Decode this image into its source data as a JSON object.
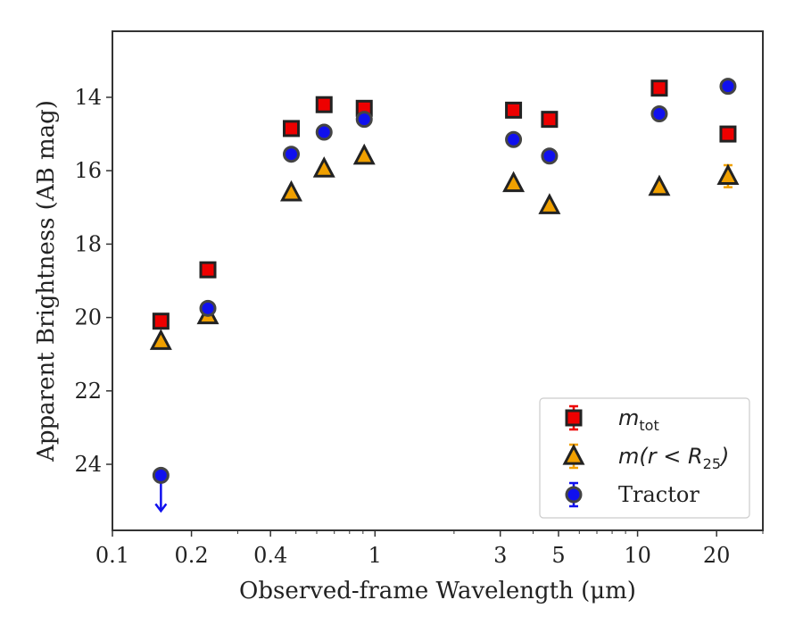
{
  "chart_data": {
    "type": "scatter",
    "title": "",
    "xlabel": "Observed-frame Wavelength (μm)",
    "ylabel": "Apparent Brightness (AB mag)",
    "xscale": "log",
    "xlim": [
      0.1,
      30
    ],
    "ylim": [
      25.8,
      12.2
    ],
    "y_inverted": true,
    "x_ticks": [
      0.1,
      0.2,
      0.4,
      1,
      3,
      5,
      10,
      20
    ],
    "x_tick_labels": [
      "0.1",
      "0.2",
      "0.4",
      "1",
      "3",
      "5",
      "10",
      "20"
    ],
    "y_ticks": [
      14,
      16,
      18,
      20,
      22,
      24
    ],
    "y_tick_labels": [
      "14",
      "16",
      "18",
      "20",
      "22",
      "24"
    ],
    "legend_position": "lower-right",
    "series": [
      {
        "name": "m_tot",
        "marker": "square",
        "color": "#ee0000",
        "edge": "#222222",
        "x": [
          0.153,
          0.231,
          0.48,
          0.64,
          0.91,
          3.37,
          4.62,
          12.1,
          22.1
        ],
        "y": [
          20.1,
          18.7,
          14.85,
          14.2,
          14.3,
          14.35,
          14.6,
          13.75,
          15.0
        ],
        "upper_limit": [
          false,
          false,
          false,
          false,
          false,
          false,
          false,
          false,
          false
        ],
        "err": [
          0.05,
          0.05,
          0.05,
          0.05,
          0.05,
          0.05,
          0.05,
          0.05,
          0.05
        ]
      },
      {
        "name": "m(r < R25)",
        "marker": "triangle",
        "color": "#f0a000",
        "edge": "#222222",
        "x": [
          0.153,
          0.231,
          0.48,
          0.64,
          0.91,
          3.37,
          4.62,
          12.1,
          22.1
        ],
        "y": [
          20.65,
          19.95,
          16.6,
          15.95,
          15.6,
          16.35,
          16.95,
          16.45,
          16.15
        ],
        "upper_limit": [
          false,
          false,
          false,
          false,
          false,
          false,
          false,
          false,
          false
        ],
        "err": [
          0.05,
          0.05,
          0.05,
          0.05,
          0.05,
          0.05,
          0.05,
          0.05,
          0.3
        ]
      },
      {
        "name": "Tractor",
        "marker": "circle",
        "color": "#1010ee",
        "edge": "#444444",
        "x": [
          0.153,
          0.231,
          0.48,
          0.64,
          0.91,
          3.37,
          4.62,
          12.1,
          22.1
        ],
        "y": [
          24.3,
          19.75,
          15.55,
          14.95,
          14.6,
          15.15,
          15.6,
          14.45,
          13.7
        ],
        "upper_limit": [
          true,
          false,
          false,
          false,
          false,
          false,
          false,
          false,
          false
        ],
        "err": [
          0.05,
          0.05,
          0.05,
          0.05,
          0.05,
          0.05,
          0.05,
          0.05,
          0.05
        ]
      }
    ],
    "legend": [
      {
        "marker": "square",
        "prefix": "m",
        "sub": "tot",
        "suffix": ""
      },
      {
        "marker": "triangle",
        "prefix": "m(r < R",
        "sub": "25",
        "suffix": ")"
      },
      {
        "marker": "circle",
        "prefix": "",
        "sub": "",
        "suffix": "",
        "text": "Tractor"
      }
    ]
  }
}
